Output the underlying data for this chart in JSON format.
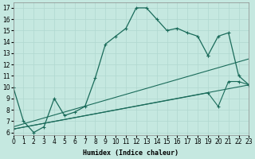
{
  "title": "",
  "xlabel": "Humidex (Indice chaleur)",
  "ylabel": "",
  "background_color": "#c5e8e0",
  "grid_color": "#b0d8d0",
  "line_color": "#1a6b5a",
  "xlim": [
    0,
    23
  ],
  "ylim": [
    5.8,
    17.5
  ],
  "yticks": [
    6,
    7,
    8,
    9,
    10,
    11,
    12,
    13,
    14,
    15,
    16,
    17
  ],
  "xticks": [
    0,
    1,
    2,
    3,
    4,
    5,
    6,
    7,
    8,
    9,
    10,
    11,
    12,
    13,
    14,
    15,
    16,
    17,
    18,
    19,
    20,
    21,
    22,
    23
  ],
  "line_main": {
    "x": [
      0,
      1,
      2,
      3,
      4,
      5,
      6,
      7,
      8,
      9,
      10,
      11,
      12,
      13,
      14,
      15,
      16,
      17,
      18,
      19
    ],
    "y": [
      10.0,
      7.0,
      6.0,
      6.5,
      9.0,
      7.5,
      7.8,
      8.3,
      10.8,
      13.8,
      14.5,
      15.2,
      17.0,
      17.0,
      16.0,
      15.0,
      15.2,
      14.8,
      14.5,
      12.8
    ],
    "style": "-",
    "marker": "+"
  },
  "line_main2": {
    "x": [
      19,
      20,
      21,
      22,
      23
    ],
    "y": [
      12.8,
      14.5,
      14.8,
      11.0,
      10.2
    ],
    "style": "-",
    "marker": "+"
  },
  "line_straight1": {
    "x": [
      0,
      23
    ],
    "y": [
      6.5,
      12.5
    ],
    "style": "-",
    "marker": null
  },
  "line_straight2": {
    "x": [
      0,
      23
    ],
    "y": [
      6.3,
      10.2
    ],
    "style": "-",
    "marker": null
  },
  "line_fan": {
    "x": [
      0,
      19,
      20,
      21,
      22,
      23
    ],
    "y": [
      6.3,
      9.5,
      8.3,
      10.5,
      10.5,
      10.2
    ],
    "style": "-",
    "marker": "+"
  }
}
